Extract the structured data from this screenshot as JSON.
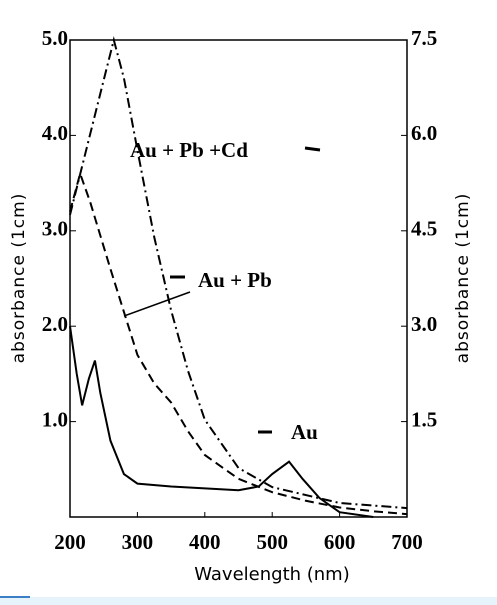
{
  "chart_data": {
    "type": "line",
    "xlabel": "Wavelength (nm)",
    "ylabel": "absorbance (1cm)",
    "y2label": "absorbance (1cm)",
    "xlim": [
      200,
      700
    ],
    "xticks": [
      200,
      300,
      400,
      500,
      600,
      700
    ],
    "ylim": [
      0,
      5
    ],
    "yticks": [
      {
        "value": 1,
        "label": "1.0"
      },
      {
        "value": 2,
        "label": "2.0"
      },
      {
        "value": 3,
        "label": "3.0"
      },
      {
        "value": 4,
        "label": "4.0"
      },
      {
        "value": 5,
        "label": "5.0"
      }
    ],
    "y2lim": [
      0,
      7.5
    ],
    "y2ticks": [
      1.5,
      {
        "value": 3,
        "label": "3.0"
      },
      4.5,
      {
        "value": 6,
        "label": "6.0"
      },
      7.5
    ],
    "series": [
      {
        "name": "Au + Pb +Cd",
        "color": "#000000",
        "dash": "dashdot",
        "axis": "y2",
        "x": [
          200,
          220,
          250,
          265,
          280,
          300,
          325,
          350,
          375,
          400,
          450,
          500,
          600,
          700
        ],
        "values": [
          4.75,
          5.6,
          6.87,
          7.5,
          6.9,
          5.77,
          4.4,
          3.25,
          2.3,
          1.53,
          0.77,
          0.47,
          0.22,
          0.14
        ]
      },
      {
        "name": "Au + Pb",
        "color": "#000000",
        "dash": "dashed",
        "x": [
          200,
          215,
          230,
          260,
          300,
          325,
          350,
          375,
          400,
          450,
          500,
          550,
          600,
          650,
          700
        ],
        "values": [
          3.2,
          3.6,
          3.3,
          2.6,
          1.7,
          1.4,
          1.2,
          0.9,
          0.65,
          0.4,
          0.26,
          0.17,
          0.1,
          0.06,
          0.03
        ]
      },
      {
        "name": "Au",
        "color": "#000000",
        "dash": "solid",
        "x": [
          200,
          210,
          218,
          228,
          237,
          245,
          260,
          280,
          300,
          350,
          400,
          450,
          480,
          500,
          525,
          545,
          570,
          600,
          650
        ],
        "values": [
          2.0,
          1.5,
          1.17,
          1.45,
          1.64,
          1.3,
          0.8,
          0.45,
          0.35,
          0.32,
          0.3,
          0.28,
          0.32,
          0.45,
          0.58,
          0.4,
          0.2,
          0.05,
          0
        ]
      }
    ]
  }
}
